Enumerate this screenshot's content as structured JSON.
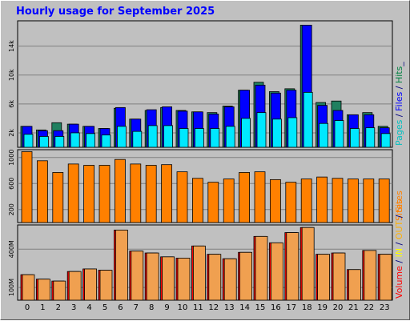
{
  "title": "Hourly usage for September 2025",
  "chart_data": [
    {
      "type": "bar",
      "categories": [
        "0",
        "1",
        "2",
        "3",
        "4",
        "5",
        "6",
        "7",
        "8",
        "9",
        "10",
        "11",
        "12",
        "13",
        "14",
        "15",
        "16",
        "17",
        "18",
        "19",
        "20",
        "21",
        "22",
        "23"
      ],
      "ylim": [
        0,
        17500
      ],
      "yticks": [
        {
          "value": 2000,
          "label": "2k"
        },
        {
          "value": 6000,
          "label": "6k"
        },
        {
          "value": 10000,
          "label": "10k"
        },
        {
          "value": 14000,
          "label": "14k"
        }
      ],
      "legend": [
        {
          "text": "Pages",
          "color": "#00c0c0"
        },
        {
          "text": " / ",
          "color": "#000080"
        },
        {
          "text": "Files",
          "color": "#0000ff"
        },
        {
          "text": " / ",
          "color": "#000080"
        },
        {
          "text": "Hits",
          "color": "#008040"
        },
        {
          "text": "_",
          "color": "#000080"
        }
      ],
      "series": [
        {
          "name": "Hits",
          "color": "#208060",
          "values": [
            2900,
            2400,
            3400,
            3200,
            2900,
            2600,
            5400,
            3900,
            5100,
            5500,
            5100,
            4900,
            4800,
            5700,
            7900,
            9000,
            7700,
            8100,
            16900,
            6200,
            6400,
            4500,
            4800,
            2900
          ]
        },
        {
          "name": "Files",
          "color": "#0000ff",
          "values": [
            2900,
            2300,
            2300,
            3200,
            2900,
            2600,
            5500,
            3900,
            5200,
            5600,
            5000,
            4900,
            4600,
            5600,
            7900,
            8600,
            7500,
            7900,
            16900,
            5800,
            5100,
            4500,
            4500,
            2700
          ]
        },
        {
          "name": "Pages",
          "color": "#00e8ff",
          "values": [
            1800,
            1500,
            1500,
            2000,
            1900,
            1700,
            2900,
            2200,
            3000,
            3000,
            2600,
            2600,
            2600,
            2900,
            4000,
            4800,
            3900,
            4100,
            7600,
            3300,
            3700,
            2600,
            2700,
            1900
          ]
        }
      ]
    },
    {
      "type": "bar",
      "categories": [
        "0",
        "1",
        "2",
        "3",
        "4",
        "5",
        "6",
        "7",
        "8",
        "9",
        "10",
        "11",
        "12",
        "13",
        "14",
        "15",
        "16",
        "17",
        "18",
        "19",
        "20",
        "21",
        "22",
        "23"
      ],
      "ylim": [
        0,
        1120
      ],
      "yticks": [
        {
          "value": 200,
          "label": "200"
        },
        {
          "value": 600,
          "label": "600"
        },
        {
          "value": 1000,
          "label": "1000"
        }
      ],
      "legend": [
        {
          "text": "Sites",
          "color": "#ff8000"
        }
      ],
      "series": [
        {
          "name": "Sites",
          "color": "#ff8000",
          "values": [
            1090,
            950,
            770,
            900,
            880,
            880,
            970,
            900,
            880,
            890,
            780,
            680,
            620,
            670,
            770,
            780,
            660,
            620,
            670,
            700,
            680,
            670,
            670,
            670
          ]
        }
      ]
    },
    {
      "type": "bar",
      "categories": [
        "0",
        "1",
        "2",
        "3",
        "4",
        "5",
        "6",
        "7",
        "8",
        "9",
        "10",
        "11",
        "12",
        "13",
        "14",
        "15",
        "16",
        "17",
        "18",
        "19",
        "20",
        "21",
        "22",
        "23"
      ],
      "ylim": [
        0,
        590
      ],
      "yticks": [
        {
          "value": 100,
          "label": "100M"
        },
        {
          "value": 400,
          "label": "400M"
        }
      ],
      "legend": [
        {
          "text": "Volume",
          "color": "#ff0000"
        },
        {
          "text": " / ",
          "color": "#000080"
        },
        {
          "text": "IN",
          "color": "#ffff00"
        },
        {
          "text": " / ",
          "color": "#000080"
        },
        {
          "text": "OUT",
          "color": "#ffb000"
        },
        {
          "text": " / ",
          "color": "#000080"
        },
        {
          "text": "Sites",
          "color": "#ff8000"
        }
      ],
      "series": [
        {
          "name": "Volume",
          "color": "#ff0000",
          "values": [
            200,
            165,
            150,
            225,
            245,
            235,
            550,
            385,
            370,
            340,
            330,
            425,
            360,
            325,
            375,
            500,
            450,
            530,
            570,
            360,
            370,
            240,
            390,
            360
          ]
        },
        {
          "name": "OUT",
          "color": "#f0a050",
          "values": [
            200,
            165,
            150,
            225,
            245,
            235,
            550,
            385,
            370,
            340,
            330,
            425,
            360,
            325,
            375,
            500,
            450,
            530,
            570,
            360,
            370,
            240,
            390,
            360
          ]
        }
      ]
    }
  ]
}
